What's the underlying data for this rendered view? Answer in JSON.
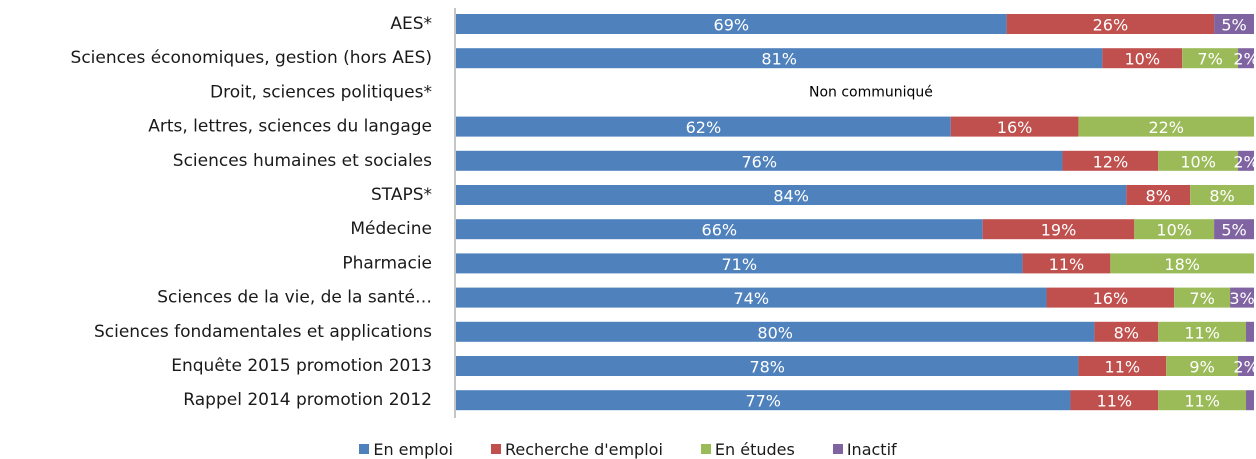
{
  "chart_data": {
    "type": "bar",
    "orientation": "horizontal",
    "stacked": true,
    "percent": true,
    "categories": [
      "AES*",
      "Sciences économiques, gestion (hors AES)",
      "Droit, sciences politiques*",
      "Arts, lettres, sciences du langage",
      "Sciences humaines et sociales",
      "STAPS*",
      "Médecine",
      "Pharmacie",
      "Sciences de la vie, de la santé…",
      "Sciences fondamentales et applications",
      "Enquête 2015 promotion 2013",
      "Rappel 2014 promotion 2012"
    ],
    "series": [
      {
        "name": "En emploi",
        "color": "#4F81BD",
        "values": [
          69,
          81,
          null,
          62,
          76,
          84,
          66,
          71,
          74,
          80,
          78,
          77
        ]
      },
      {
        "name": "Recherche d'emploi",
        "color": "#C0504D",
        "values": [
          26,
          10,
          null,
          16,
          12,
          8,
          19,
          11,
          16,
          8,
          11,
          11
        ]
      },
      {
        "name": "En études",
        "color": "#9BBB59",
        "values": [
          0,
          7,
          null,
          22,
          10,
          8,
          10,
          18,
          7,
          11,
          9,
          11
        ]
      },
      {
        "name": "Inactif",
        "color": "#8064A2",
        "values": [
          5,
          2,
          null,
          0,
          2,
          0,
          5,
          0,
          3,
          1,
          2,
          1
        ]
      }
    ],
    "data_labels": [
      [
        "69%",
        "26%",
        "",
        "5%"
      ],
      [
        "81%",
        "10%",
        "7%",
        "2%"
      ],
      [
        "",
        "",
        "",
        ""
      ],
      [
        "62%",
        "16%",
        "22%",
        ""
      ],
      [
        "76%",
        "12%",
        "10%",
        "2%"
      ],
      [
        "84%",
        "8%",
        "8%",
        ""
      ],
      [
        "66%",
        "19%",
        "10%",
        "5%"
      ],
      [
        "71%",
        "11%",
        "18%",
        ""
      ],
      [
        "74%",
        "16%",
        "7%",
        "3%"
      ],
      [
        "80%",
        "8%",
        "11%",
        ""
      ],
      [
        "78%",
        "11%",
        "9%",
        "2%"
      ],
      [
        "77%",
        "11%",
        "11%",
        ""
      ]
    ],
    "missing_label": "Non communiqué",
    "xlim": [
      0,
      100
    ],
    "legend": "bottom",
    "grid": false
  }
}
